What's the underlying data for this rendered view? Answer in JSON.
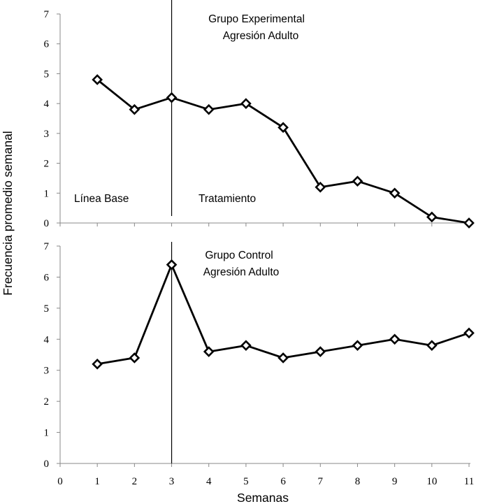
{
  "chart_data": [
    {
      "type": "line",
      "panel": "top",
      "title": "Grupo Experimental",
      "subtitle": "Agresión Adulto",
      "phase_labels": [
        "Línea Base",
        "Tratamiento"
      ],
      "phase_change_after": 3,
      "x": [
        1,
        2,
        3,
        4,
        5,
        6,
        7,
        8,
        9,
        10,
        11
      ],
      "values": [
        4.8,
        3.8,
        4.2,
        3.8,
        4.0,
        3.2,
        1.2,
        1.4,
        1.0,
        0.2,
        0.0
      ],
      "ylim": [
        0,
        7
      ],
      "yticks": [
        "0",
        "1",
        "2",
        "3",
        "4",
        "5",
        "6",
        "7"
      ],
      "grid": false,
      "marker": "diamond",
      "color": "#000000"
    },
    {
      "type": "line",
      "panel": "bottom",
      "title": "Grupo Control",
      "subtitle": "Agresión Adulto",
      "phase_change_after": 3,
      "x": [
        1,
        2,
        3,
        4,
        5,
        6,
        7,
        8,
        9,
        10,
        11
      ],
      "values": [
        3.2,
        3.4,
        6.4,
        3.6,
        3.8,
        3.4,
        3.6,
        3.8,
        4.0,
        3.8,
        4.2
      ],
      "ylim": [
        0,
        7
      ],
      "yticks": [
        "0",
        "1",
        "2",
        "3",
        "4",
        "5",
        "6",
        "7"
      ],
      "xlim": [
        0,
        11
      ],
      "xticks": [
        "0",
        "1",
        "2",
        "3",
        "4",
        "5",
        "6",
        "7",
        "8",
        "9",
        "10",
        "11"
      ],
      "grid": false,
      "marker": "diamond",
      "color": "#000000"
    }
  ],
  "shared": {
    "xlabel": "Semanas",
    "ylabel": "Frecuencia promedio semanal"
  }
}
